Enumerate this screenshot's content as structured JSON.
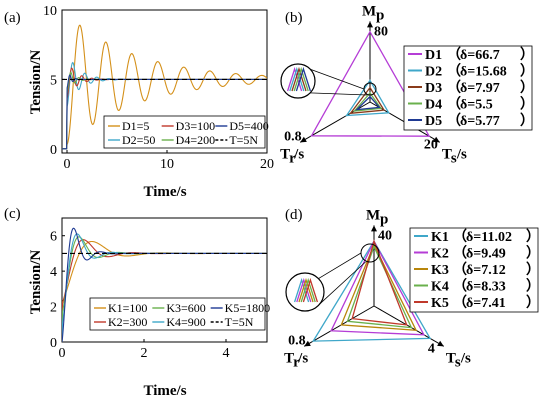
{
  "chart_data": [
    {
      "panel": "(a)",
      "type": "line",
      "xlabel": "Time/s",
      "ylabel": "Tension/N",
      "xlim": [
        -0.5,
        20
      ],
      "ylim": [
        -0.3,
        10
      ],
      "xticks": [
        "0",
        "10",
        "20"
      ],
      "yticks": [
        "0",
        "5",
        "10"
      ],
      "reference": {
        "name": "T=5N",
        "value": 5
      },
      "series": [
        {
          "name": "D1=5",
          "color": "#d4901a",
          "overshoot": 0.78,
          "peak_time": 1.3,
          "decay_time": 7.0,
          "period": 2.6
        },
        {
          "name": "D2=50",
          "color": "#3fa7c9",
          "overshoot": 0.24,
          "peak_time": 0.55,
          "decay_time": 1.2,
          "period": 1.2
        },
        {
          "name": "D3=100",
          "color": "#c0392b",
          "overshoot": 0.16,
          "peak_time": 0.45,
          "decay_time": 0.9,
          "period": 1.0
        },
        {
          "name": "D4=200",
          "color": "#6ab04c",
          "overshoot": 0.1,
          "peak_time": 0.35,
          "decay_time": 0.6,
          "period": 0.8
        },
        {
          "name": "D5=400",
          "color": "#1f3a93",
          "overshoot": 0.06,
          "peak_time": 0.3,
          "decay_time": 0.4,
          "period": 0.6
        }
      ]
    },
    {
      "panel": "(b)",
      "type": "radar",
      "axes": [
        {
          "label": "Mp",
          "label_main": "M",
          "label_sub": "p",
          "max_label": "80",
          "max": 80
        },
        {
          "label": "Ts/s",
          "label_main": "T",
          "label_sub": "s",
          "label_unit": "/s",
          "max_label": "20",
          "max": 20
        },
        {
          "label": "Tr/s",
          "label_main": "T",
          "label_sub": "r",
          "label_unit": "/s",
          "max_label": "0.8",
          "max": 0.8
        }
      ],
      "series": [
        {
          "name": "D1",
          "delta": "δ=66.7",
          "color": "#b53dd6",
          "values": [
            78,
            19,
            0.75
          ]
        },
        {
          "name": "D2",
          "delta": "δ=15.68",
          "color": "#3fa7c9",
          "values": [
            24,
            6,
            0.3
          ]
        },
        {
          "name": "D3",
          "delta": "δ=7.97",
          "color": "#8a3b1a",
          "values": [
            16,
            4.5,
            0.25
          ]
        },
        {
          "name": "D4",
          "delta": "δ=5.5",
          "color": "#6ab04c",
          "values": [
            10,
            3.5,
            0.2
          ]
        },
        {
          "name": "D5",
          "delta": "δ=5.77",
          "color": "#1f3a93",
          "values": [
            6,
            3.0,
            0.17
          ]
        }
      ]
    },
    {
      "panel": "(c)",
      "type": "line",
      "xlabel": "Time/s",
      "ylabel": "Tension/N",
      "xlim": [
        0,
        5
      ],
      "ylim": [
        0,
        7
      ],
      "xticks": [
        "0",
        "2",
        "4"
      ],
      "yticks": [
        "0",
        "2",
        "4",
        "6"
      ],
      "reference": {
        "name": "T=5N",
        "value": 5
      },
      "series": [
        {
          "name": "K1=100",
          "color": "#d4901a",
          "overshoot": 0.12,
          "peak_time": 1.05,
          "decay_time": 0.55,
          "period": 1.7
        },
        {
          "name": "K2=300",
          "color": "#c0392b",
          "overshoot": 0.14,
          "peak_time": 0.75,
          "decay_time": 0.42,
          "period": 1.2
        },
        {
          "name": "K3=600",
          "color": "#6ab04c",
          "overshoot": 0.17,
          "peak_time": 0.58,
          "decay_time": 0.34,
          "period": 0.95
        },
        {
          "name": "K4=900",
          "color": "#3fa7c9",
          "overshoot": 0.2,
          "peak_time": 0.5,
          "decay_time": 0.3,
          "period": 0.85
        },
        {
          "name": "K5=1800",
          "color": "#1f3a93",
          "overshoot": 0.26,
          "peak_time": 0.38,
          "decay_time": 0.24,
          "period": 0.65
        }
      ]
    },
    {
      "panel": "(d)",
      "type": "radar",
      "axes": [
        {
          "label": "Mp",
          "label_main": "M",
          "label_sub": "p",
          "max_label": "40",
          "max": 40
        },
        {
          "label": "Ts/s",
          "label_main": "T",
          "label_sub": "s",
          "label_unit": "/s",
          "max_label": "4",
          "max": 4
        },
        {
          "label": "Tr/s",
          "label_main": "T",
          "label_sub": "r",
          "label_unit": "/s",
          "max_label": "0.8",
          "max": 0.8
        }
      ],
      "series": [
        {
          "name": "K1",
          "delta": "δ=11.02",
          "color": "#3fa7c9",
          "values": [
            36,
            3.6,
            0.78
          ]
        },
        {
          "name": "K2",
          "delta": "δ=9.49",
          "color": "#b53dd6",
          "values": [
            36,
            3.2,
            0.55
          ]
        },
        {
          "name": "K3",
          "delta": "δ=7.12",
          "color": "#b8860b",
          "values": [
            34,
            2.7,
            0.42
          ]
        },
        {
          "name": "K4",
          "delta": "δ=8.33",
          "color": "#6ab04c",
          "values": [
            33,
            2.4,
            0.34
          ]
        },
        {
          "name": "K5",
          "delta": "δ=7.41",
          "color": "#c0392b",
          "values": [
            36,
            2.1,
            0.28
          ]
        }
      ]
    }
  ]
}
